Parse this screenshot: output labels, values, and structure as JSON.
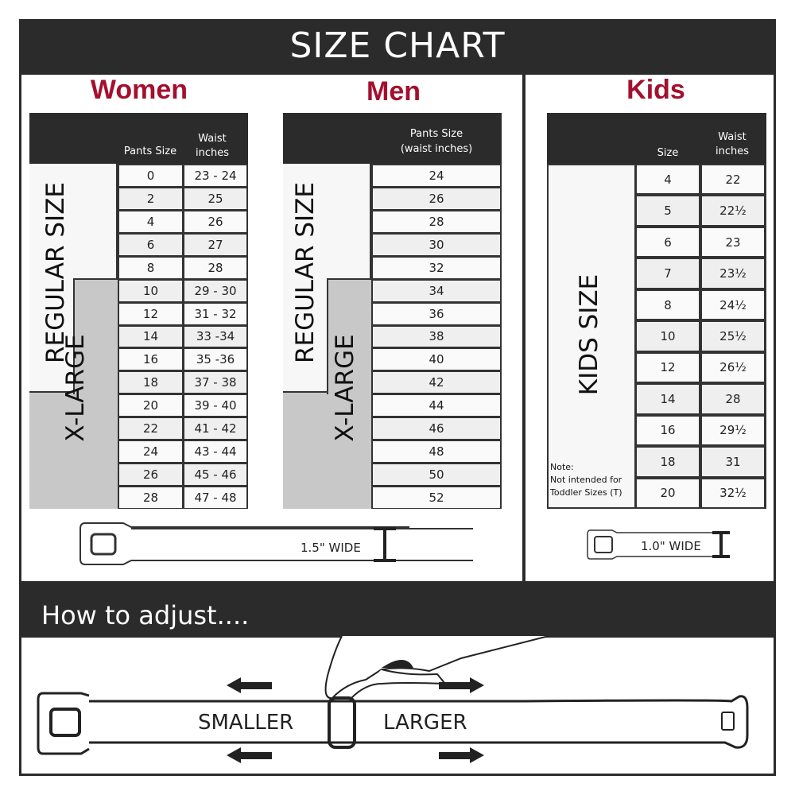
{
  "title": "SIZE CHART",
  "accent": "#a3102e",
  "women": {
    "title": "Women",
    "col1": "Pants Size",
    "col2": "Waist inches",
    "regular_label": "REGULAR SIZE",
    "xlarge_label": "X-LARGE",
    "rows": [
      [
        "0",
        "23 - 24"
      ],
      [
        "2",
        "25"
      ],
      [
        "4",
        "26"
      ],
      [
        "6",
        "27"
      ],
      [
        "8",
        "28"
      ],
      [
        "10",
        "29 - 30"
      ],
      [
        "12",
        "31 - 32"
      ],
      [
        "14",
        "33 -34"
      ],
      [
        "16",
        "35 -36"
      ],
      [
        "18",
        "37 - 38"
      ],
      [
        "20",
        "39 - 40"
      ],
      [
        "22",
        "41 - 42"
      ],
      [
        "24",
        "43 - 44"
      ],
      [
        "26",
        "45 - 46"
      ],
      [
        "28",
        "47 - 48"
      ]
    ]
  },
  "men": {
    "title": "Men",
    "col1": "Pants Size",
    "col1_sub": "(waist inches)",
    "regular_label": "REGULAR SIZE",
    "xlarge_label": "X-LARGE",
    "rows": [
      "24",
      "26",
      "28",
      "30",
      "32",
      "34",
      "36",
      "38",
      "40",
      "42",
      "44",
      "46",
      "48",
      "50",
      "52"
    ]
  },
  "kids": {
    "title": "Kids",
    "col1": "Size",
    "col2": "Waist inches",
    "label": "KIDS SIZE",
    "note_title": "Note:",
    "note_line1": "Not intended for",
    "note_line2": "Toddler Sizes (T)",
    "rows": [
      [
        "4",
        "22"
      ],
      [
        "5",
        "22½"
      ],
      [
        "6",
        "23"
      ],
      [
        "7",
        "23½"
      ],
      [
        "8",
        "24½"
      ],
      [
        "10",
        "25½"
      ],
      [
        "12",
        "26½"
      ],
      [
        "14",
        "28"
      ],
      [
        "16",
        "29½"
      ],
      [
        "18",
        "31"
      ],
      [
        "20",
        "32½"
      ]
    ]
  },
  "adult_belt_width": "1.5\" WIDE",
  "kids_belt_width": "1.0\" WIDE",
  "adjust": {
    "title": "How to adjust....",
    "smaller": "SMALLER",
    "larger": "LARGER"
  }
}
